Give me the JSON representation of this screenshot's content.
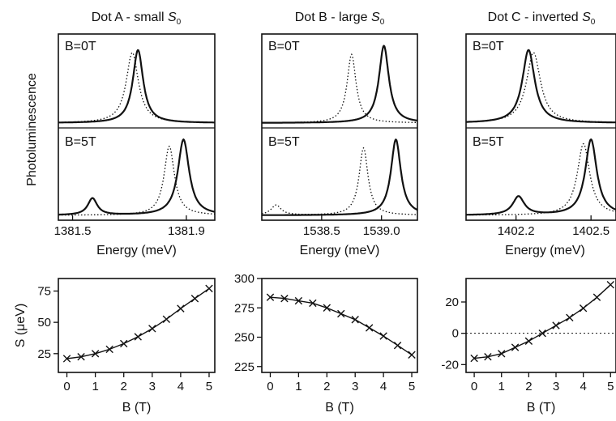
{
  "figure": {
    "ylabel_top": "Photoluminescence",
    "panel_labels": {
      "b0": "B=0T",
      "b5": "B=5T"
    }
  },
  "chart_data": [
    {
      "type": "line",
      "title_main": "Dot A - small ",
      "title_sym": "S",
      "title_sub": "0",
      "xlabel": "Energy (meV)",
      "xlim": [
        1381.45,
        1382.0
      ],
      "xticks": [
        1381.5,
        1381.9
      ],
      "xtick_labels": [
        "1381.5",
        "1381.9"
      ],
      "spectra": {
        "B0": {
          "solid": [
            {
              "center": 1381.73,
              "height": 0.85,
              "width": 0.022
            }
          ],
          "dotted": [
            {
              "center": 1381.71,
              "height": 0.82,
              "width": 0.026
            }
          ]
        },
        "B5": {
          "solid": [
            {
              "center": 1381.89,
              "height": 0.9,
              "width": 0.024
            },
            {
              "center": 1381.57,
              "height": 0.2,
              "width": 0.02
            }
          ],
          "dotted": [
            {
              "center": 1381.84,
              "height": 0.82,
              "width": 0.022
            }
          ]
        }
      }
    },
    {
      "type": "line",
      "title_main": "Dot B - large ",
      "title_sym": "S",
      "title_sub": "0",
      "xlabel": "Energy (meV)",
      "xlim": [
        1538.0,
        1539.3
      ],
      "xticks": [
        1538.5,
        1539.0
      ],
      "xtick_labels": [
        "1538.5",
        "1539.0"
      ],
      "spectra": {
        "B0": {
          "solid": [
            {
              "center": 1539.02,
              "height": 0.9,
              "width": 0.05
            }
          ],
          "dotted": [
            {
              "center": 1538.75,
              "height": 0.8,
              "width": 0.045
            }
          ]
        },
        "B5": {
          "solid": [
            {
              "center": 1539.12,
              "height": 0.9,
              "width": 0.05
            }
          ],
          "dotted": [
            {
              "center": 1538.85,
              "height": 0.8,
              "width": 0.045
            },
            {
              "center": 1538.12,
              "height": 0.12,
              "width": 0.05
            }
          ]
        }
      }
    },
    {
      "type": "line",
      "title_main": "Dot C - inverted ",
      "title_sym": "S",
      "title_sub": "0",
      "xlabel": "Energy (meV)",
      "xlim": [
        1402.0,
        1402.6
      ],
      "xticks": [
        1402.2,
        1402.5
      ],
      "xtick_labels": [
        "1402.2",
        "1402.5"
      ],
      "spectra": {
        "B0": {
          "solid": [
            {
              "center": 1402.25,
              "height": 0.85,
              "width": 0.03
            }
          ],
          "dotted": [
            {
              "center": 1402.27,
              "height": 0.82,
              "width": 0.034
            }
          ]
        },
        "B5": {
          "solid": [
            {
              "center": 1402.5,
              "height": 0.9,
              "width": 0.028
            },
            {
              "center": 1402.21,
              "height": 0.22,
              "width": 0.028
            }
          ],
          "dotted": [
            {
              "center": 1402.47,
              "height": 0.85,
              "width": 0.03
            }
          ]
        }
      }
    },
    {
      "type": "scatter",
      "xlabel": "B (T)",
      "ylabel": "S (μeV)",
      "xlim": [
        -0.3,
        5.2
      ],
      "ylim": [
        10,
        85
      ],
      "xticks": [
        0,
        1,
        2,
        3,
        4,
        5
      ],
      "yticks": [
        25,
        50,
        75
      ],
      "zero_line": false,
      "B": [
        0,
        0.5,
        1,
        1.5,
        2,
        2.5,
        3,
        3.5,
        4,
        4.5,
        5
      ],
      "S": [
        21,
        22.5,
        25,
        28.5,
        33,
        38.5,
        45,
        52.5,
        61,
        69,
        77
      ]
    },
    {
      "type": "scatter",
      "xlabel": "B (T)",
      "ylabel": "",
      "xlim": [
        -0.3,
        5.2
      ],
      "ylim": [
        220,
        300
      ],
      "xticks": [
        0,
        1,
        2,
        3,
        4,
        5
      ],
      "yticks": [
        225,
        250,
        275,
        300
      ],
      "zero_line": false,
      "B": [
        0,
        0.5,
        1,
        1.5,
        2,
        2.5,
        3,
        3.5,
        4,
        4.5,
        5
      ],
      "S": [
        284,
        283,
        281,
        279,
        275,
        270,
        265,
        258,
        251,
        243,
        235
      ]
    },
    {
      "type": "scatter",
      "xlabel": "B (T)",
      "ylabel": "",
      "xlim": [
        -0.3,
        5.2
      ],
      "ylim": [
        -25,
        35
      ],
      "xticks": [
        0,
        1,
        2,
        3,
        4,
        5
      ],
      "yticks": [
        -20,
        0,
        20
      ],
      "zero_line": true,
      "B": [
        0,
        0.5,
        1,
        1.5,
        2,
        2.5,
        3,
        3.5,
        4,
        4.5,
        5
      ],
      "S": [
        -16,
        -15,
        -13,
        -9,
        -5,
        0,
        5,
        10,
        16,
        23,
        31
      ]
    }
  ]
}
